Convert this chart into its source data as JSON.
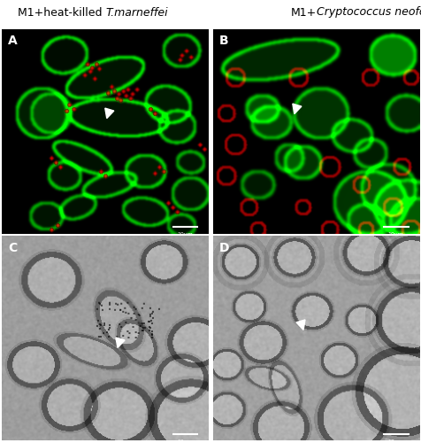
{
  "fig_width": 4.77,
  "fig_height": 5.0,
  "dpi": 100,
  "panel_labels": [
    "A",
    "B",
    "C",
    "D"
  ],
  "scale_bar_text": "10μm",
  "background_color": "#ffffff",
  "title_fontsize": 9.0,
  "label_fontsize": 10,
  "title1_normal": "M1+heat-killed ",
  "title1_italic": "T.marneffei",
  "title2_normal": "M1+",
  "title2_italic": "Cryptococcus neoformans"
}
